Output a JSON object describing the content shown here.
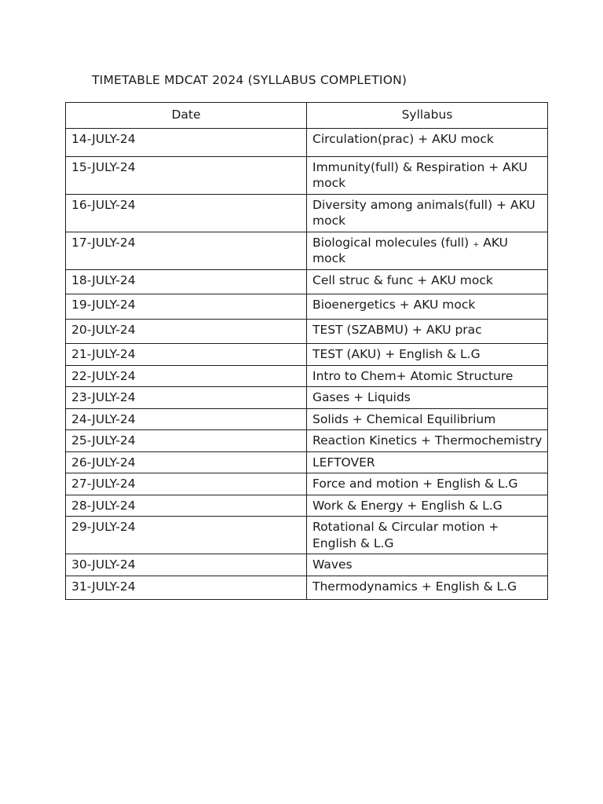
{
  "page": {
    "title": "TIMETABLE MDCAT 2024 (SYLLABUS COMPLETION)"
  },
  "colors": {
    "background": "#ffffff",
    "text": "#1a1a1a",
    "border": "#1f1f1f"
  },
  "table": {
    "headers": [
      "Date",
      "Syllabus"
    ],
    "rows": [
      {
        "date": "14-JULY-24",
        "syllabus": "Circulation(prac) + AKU mock"
      },
      {
        "date": "15-JULY-24",
        "syllabus": "Immunity(full) & Respiration + AKU mock"
      },
      {
        "date": "16-JULY-24",
        "syllabus": "Diversity among animals(full) + AKU mock"
      },
      {
        "date": "17-JULY-24",
        "syllabus": "Biological molecules (full) ₊ AKU mock"
      },
      {
        "date": "18-JULY-24",
        "syllabus": "Cell struc & func + AKU mock"
      },
      {
        "date": "19-JULY-24",
        "syllabus": "Bioenergetics + AKU mock"
      },
      {
        "date": "20-JULY-24",
        "syllabus": "TEST (SZABMU) + AKU prac"
      },
      {
        "date": "21-JULY-24",
        "syllabus": "TEST (AKU) + English & L.G"
      },
      {
        "date": "22-JULY-24",
        "syllabus": "Intro to Chem+ Atomic Structure"
      },
      {
        "date": "23-JULY-24",
        "syllabus": "Gases + Liquids"
      },
      {
        "date": "24-JULY-24",
        "syllabus": "Solids + Chemical Equilibrium"
      },
      {
        "date": "25-JULY-24",
        "syllabus": "Reaction Kinetics + Thermochemistry"
      },
      {
        "date": "26-JULY-24",
        "syllabus": "LEFTOVER"
      },
      {
        "date": "27-JULY-24",
        "syllabus": "Force and motion + English & L.G"
      },
      {
        "date": "28-JULY-24",
        "syllabus": "Work & Energy + English & L.G"
      },
      {
        "date": "29-JULY-24",
        "syllabus": "Rotational & Circular motion + English & L.G"
      },
      {
        "date": "30-JULY-24",
        "syllabus": "Waves"
      },
      {
        "date": "31-JULY-24",
        "syllabus": "Thermodynamics + English & L.G"
      }
    ]
  }
}
